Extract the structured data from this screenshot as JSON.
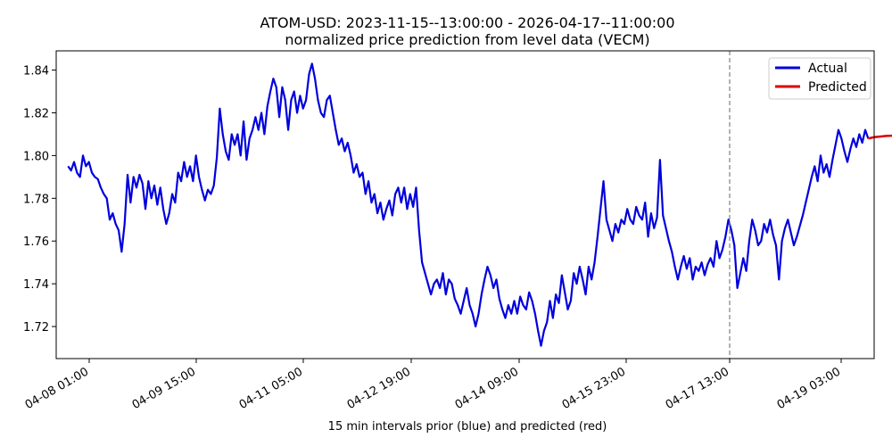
{
  "chart_data": {
    "type": "line",
    "title": "ATOM-USD: 2023-11-15--13:00:00 - 2026-04-17--11:00:00",
    "subtitle": "normalized price prediction from level data (VECM)",
    "xlabel": "15 min intervals prior (blue) and predicted (red)",
    "ylabel": "",
    "xlim_hours": [
      -3,
      122
    ],
    "ylim": [
      1.705,
      1.849
    ],
    "x_ticks": [
      {
        "label": "04-08 01:00",
        "hour": 0
      },
      {
        "label": "04-09 15:00",
        "hour": 38
      },
      {
        "label": "04-11 05:00",
        "hour": 76
      },
      {
        "label": "04-12 19:00",
        "hour": 114
      },
      {
        "label": "04-14 09:00",
        "hour": 152
      },
      {
        "label": "04-15 23:00",
        "hour": 190
      },
      {
        "label": "04-17 13:00",
        "hour": 228
      },
      {
        "label": "04-19 03:00",
        "hour": 266
      }
    ],
    "y_ticks": [
      1.72,
      1.74,
      1.76,
      1.78,
      1.8,
      1.82,
      1.84
    ],
    "y_tick_labels": [
      "1.72",
      "1.74",
      "1.76",
      "1.78",
      "1.80",
      "1.82",
      "1.84"
    ],
    "xlim": [
      -3,
      272
    ],
    "vline_hour": 227.5,
    "legend_position": "top-right",
    "grid": false,
    "colors": {
      "actual": "#0000dd",
      "predicted": "#dd0000",
      "vline": "#808080"
    },
    "series": [
      {
        "name": "Actual",
        "color": "#0000dd",
        "points": [
          [
            1,
            1.795
          ],
          [
            2,
            1.793
          ],
          [
            3,
            1.797
          ],
          [
            4,
            1.792
          ],
          [
            5,
            1.79
          ],
          [
            6,
            1.8
          ],
          [
            7,
            1.795
          ],
          [
            8,
            1.797
          ],
          [
            9,
            1.792
          ],
          [
            10,
            1.79
          ],
          [
            11,
            1.789
          ],
          [
            12,
            1.785
          ],
          [
            13,
            1.782
          ],
          [
            14,
            1.78
          ],
          [
            15,
            1.77
          ],
          [
            16,
            1.773
          ],
          [
            17,
            1.768
          ],
          [
            18,
            1.765
          ],
          [
            19,
            1.755
          ],
          [
            20,
            1.768
          ],
          [
            21,
            1.791
          ],
          [
            22,
            1.778
          ],
          [
            23,
            1.79
          ],
          [
            24,
            1.785
          ],
          [
            25,
            1.791
          ],
          [
            26,
            1.787
          ],
          [
            27,
            1.775
          ],
          [
            28,
            1.788
          ],
          [
            29,
            1.78
          ],
          [
            30,
            1.786
          ],
          [
            31,
            1.777
          ],
          [
            32,
            1.785
          ],
          [
            33,
            1.775
          ],
          [
            34,
            1.768
          ],
          [
            35,
            1.773
          ],
          [
            36,
            1.782
          ],
          [
            37,
            1.778
          ],
          [
            38,
            1.792
          ],
          [
            39,
            1.788
          ],
          [
            40,
            1.797
          ],
          [
            41,
            1.79
          ],
          [
            42,
            1.795
          ],
          [
            43,
            1.788
          ],
          [
            44,
            1.8
          ],
          [
            45,
            1.79
          ],
          [
            46,
            1.784
          ],
          [
            47,
            1.779
          ],
          [
            48,
            1.784
          ],
          [
            49,
            1.782
          ],
          [
            50,
            1.786
          ],
          [
            51,
            1.799
          ],
          [
            52,
            1.822
          ],
          [
            53,
            1.81
          ],
          [
            54,
            1.802
          ],
          [
            55,
            1.798
          ],
          [
            56,
            1.81
          ],
          [
            57,
            1.805
          ],
          [
            58,
            1.81
          ],
          [
            59,
            1.8
          ],
          [
            60,
            1.816
          ],
          [
            61,
            1.798
          ],
          [
            62,
            1.808
          ],
          [
            63,
            1.812
          ],
          [
            64,
            1.818
          ],
          [
            65,
            1.812
          ],
          [
            66,
            1.82
          ],
          [
            67,
            1.81
          ],
          [
            68,
            1.823
          ],
          [
            69,
            1.83
          ],
          [
            70,
            1.836
          ],
          [
            71,
            1.832
          ],
          [
            72,
            1.818
          ],
          [
            73,
            1.832
          ],
          [
            74,
            1.826
          ],
          [
            75,
            1.812
          ],
          [
            76,
            1.826
          ],
          [
            77,
            1.83
          ],
          [
            78,
            1.82
          ],
          [
            79,
            1.828
          ],
          [
            80,
            1.822
          ],
          [
            81,
            1.826
          ],
          [
            82,
            1.838
          ],
          [
            83,
            1.843
          ],
          [
            84,
            1.836
          ],
          [
            85,
            1.826
          ],
          [
            86,
            1.82
          ],
          [
            87,
            1.818
          ],
          [
            88,
            1.826
          ],
          [
            89,
            1.828
          ],
          [
            90,
            1.82
          ],
          [
            91,
            1.812
          ],
          [
            92,
            1.805
          ],
          [
            93,
            1.808
          ],
          [
            94,
            1.802
          ],
          [
            95,
            1.806
          ],
          [
            96,
            1.8
          ],
          [
            97,
            1.792
          ],
          [
            98,
            1.796
          ],
          [
            99,
            1.79
          ],
          [
            100,
            1.792
          ],
          [
            101,
            1.782
          ],
          [
            102,
            1.788
          ],
          [
            103,
            1.778
          ],
          [
            104,
            1.782
          ],
          [
            105,
            1.773
          ],
          [
            106,
            1.778
          ],
          [
            107,
            1.77
          ],
          [
            108,
            1.775
          ],
          [
            109,
            1.779
          ],
          [
            110,
            1.772
          ],
          [
            111,
            1.782
          ],
          [
            112,
            1.785
          ],
          [
            113,
            1.778
          ],
          [
            114,
            1.785
          ],
          [
            115,
            1.775
          ],
          [
            116,
            1.782
          ],
          [
            117,
            1.776
          ],
          [
            118,
            1.785
          ],
          [
            119,
            1.765
          ],
          [
            120,
            1.75
          ],
          [
            121,
            1.745
          ],
          [
            122,
            1.74
          ],
          [
            123,
            1.735
          ],
          [
            124,
            1.74
          ],
          [
            125,
            1.742
          ],
          [
            126,
            1.738
          ],
          [
            127,
            1.745
          ],
          [
            128,
            1.735
          ],
          [
            129,
            1.742
          ],
          [
            130,
            1.74
          ],
          [
            131,
            1.733
          ],
          [
            132,
            1.73
          ],
          [
            133,
            1.726
          ],
          [
            134,
            1.732
          ],
          [
            135,
            1.738
          ],
          [
            136,
            1.73
          ],
          [
            137,
            1.726
          ],
          [
            138,
            1.72
          ],
          [
            139,
            1.726
          ],
          [
            140,
            1.735
          ],
          [
            141,
            1.742
          ],
          [
            142,
            1.748
          ],
          [
            143,
            1.744
          ],
          [
            144,
            1.738
          ],
          [
            145,
            1.742
          ],
          [
            146,
            1.733
          ],
          [
            147,
            1.728
          ],
          [
            148,
            1.724
          ],
          [
            149,
            1.73
          ],
          [
            150,
            1.726
          ],
          [
            151,
            1.732
          ],
          [
            152,
            1.726
          ],
          [
            153,
            1.734
          ],
          [
            154,
            1.73
          ],
          [
            155,
            1.728
          ],
          [
            156,
            1.736
          ],
          [
            157,
            1.732
          ],
          [
            158,
            1.726
          ],
          [
            159,
            1.718
          ],
          [
            160,
            1.711
          ],
          [
            161,
            1.718
          ],
          [
            162,
            1.722
          ],
          [
            163,
            1.732
          ],
          [
            164,
            1.724
          ],
          [
            165,
            1.735
          ],
          [
            166,
            1.731
          ],
          [
            167,
            1.744
          ],
          [
            168,
            1.736
          ],
          [
            169,
            1.728
          ],
          [
            170,
            1.732
          ],
          [
            171,
            1.745
          ],
          [
            172,
            1.74
          ],
          [
            173,
            1.748
          ],
          [
            174,
            1.742
          ],
          [
            175,
            1.735
          ],
          [
            176,
            1.748
          ],
          [
            177,
            1.742
          ],
          [
            178,
            1.75
          ],
          [
            179,
            1.762
          ],
          [
            180,
            1.775
          ],
          [
            181,
            1.788
          ],
          [
            182,
            1.77
          ],
          [
            183,
            1.765
          ],
          [
            184,
            1.76
          ],
          [
            185,
            1.768
          ],
          [
            186,
            1.764
          ],
          [
            187,
            1.77
          ],
          [
            188,
            1.768
          ],
          [
            189,
            1.775
          ],
          [
            190,
            1.77
          ],
          [
            191,
            1.768
          ],
          [
            192,
            1.776
          ],
          [
            193,
            1.772
          ],
          [
            194,
            1.77
          ],
          [
            195,
            1.778
          ],
          [
            196,
            1.762
          ],
          [
            197,
            1.773
          ],
          [
            198,
            1.766
          ],
          [
            199,
            1.771
          ],
          [
            200,
            1.798
          ],
          [
            201,
            1.772
          ],
          [
            202,
            1.766
          ],
          [
            203,
            1.76
          ],
          [
            204,
            1.755
          ],
          [
            205,
            1.748
          ],
          [
            206,
            1.742
          ],
          [
            207,
            1.748
          ],
          [
            208,
            1.753
          ],
          [
            209,
            1.747
          ],
          [
            210,
            1.752
          ],
          [
            211,
            1.742
          ],
          [
            212,
            1.748
          ],
          [
            213,
            1.746
          ],
          [
            214,
            1.75
          ],
          [
            215,
            1.744
          ],
          [
            216,
            1.749
          ],
          [
            217,
            1.752
          ],
          [
            218,
            1.748
          ],
          [
            219,
            1.76
          ],
          [
            220,
            1.752
          ],
          [
            221,
            1.756
          ],
          [
            222,
            1.762
          ],
          [
            223,
            1.77
          ],
          [
            224,
            1.765
          ],
          [
            225,
            1.758
          ],
          [
            226,
            1.738
          ],
          [
            227,
            1.745
          ],
          [
            228,
            1.752
          ],
          [
            229,
            1.746
          ],
          [
            230,
            1.76
          ],
          [
            231,
            1.77
          ],
          [
            232,
            1.765
          ],
          [
            233,
            1.758
          ],
          [
            234,
            1.76
          ],
          [
            235,
            1.768
          ],
          [
            236,
            1.764
          ],
          [
            237,
            1.77
          ],
          [
            238,
            1.763
          ],
          [
            239,
            1.758
          ],
          [
            240,
            1.742
          ],
          [
            241,
            1.76
          ],
          [
            242,
            1.766
          ],
          [
            243,
            1.77
          ],
          [
            244,
            1.764
          ],
          [
            245,
            1.758
          ],
          [
            246,
            1.762
          ],
          [
            247,
            1.767
          ],
          [
            248,
            1.772
          ],
          [
            249,
            1.778
          ],
          [
            250,
            1.784
          ],
          [
            251,
            1.79
          ],
          [
            252,
            1.795
          ],
          [
            253,
            1.788
          ],
          [
            254,
            1.8
          ],
          [
            255,
            1.792
          ],
          [
            256,
            1.796
          ],
          [
            257,
            1.79
          ],
          [
            258,
            1.798
          ],
          [
            259,
            1.805
          ],
          [
            260,
            1.812
          ],
          [
            261,
            1.808
          ],
          [
            262,
            1.802
          ],
          [
            263,
            1.797
          ],
          [
            264,
            1.803
          ],
          [
            265,
            1.808
          ],
          [
            266,
            1.804
          ],
          [
            267,
            1.81
          ],
          [
            268,
            1.806
          ],
          [
            269,
            1.812
          ],
          [
            270,
            1.808
          ]
        ]
      },
      {
        "name": "Predicted",
        "color": "#dd0000",
        "points": []
      }
    ]
  }
}
